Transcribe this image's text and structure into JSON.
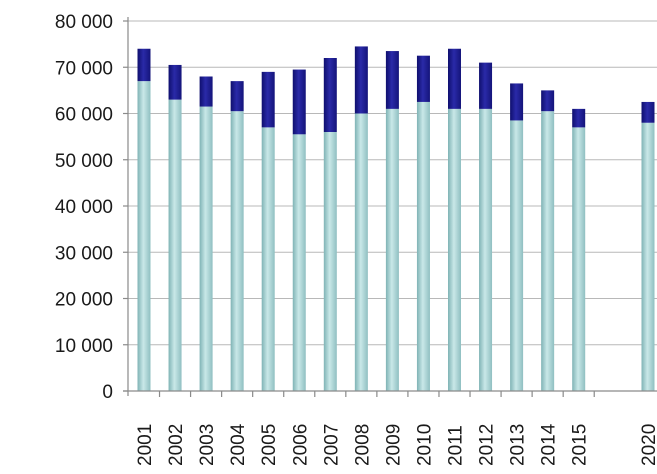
{
  "chart_data": {
    "type": "bar",
    "stacked": true,
    "title": "",
    "xlabel": "",
    "ylabel": "",
    "ylim": [
      0,
      80000
    ],
    "grid": true,
    "legend": "none",
    "yticks": [
      0,
      10000,
      20000,
      30000,
      40000,
      50000,
      60000,
      70000,
      80000
    ],
    "ytick_labels": [
      "0",
      "10 000",
      "20 000",
      "30 000",
      "40 000",
      "50 000",
      "60 000",
      "70 000",
      "80 000"
    ],
    "categories": [
      "2001",
      "2002",
      "2003",
      "2004",
      "2005",
      "2006",
      "2007",
      "2008",
      "2009",
      "2010",
      "2011",
      "2012",
      "2013",
      "2014",
      "2015",
      "2020"
    ],
    "series": [
      {
        "color": "#9ecfd0",
        "values": [
          67000,
          63000,
          61500,
          60500,
          57000,
          55500,
          56000,
          60000,
          61000,
          62500,
          61000,
          61000,
          58500,
          60500,
          57000,
          58000
        ]
      },
      {
        "color": "#1a1a8c",
        "values": [
          7000,
          7500,
          6500,
          6500,
          12000,
          14000,
          16000,
          14500,
          12500,
          10000,
          13000,
          10000,
          8000,
          4500,
          4000,
          4500
        ]
      }
    ]
  }
}
